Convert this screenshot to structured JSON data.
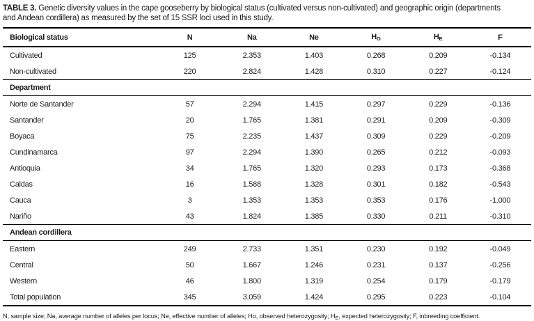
{
  "title": {
    "label": "TABLE 3.",
    "line1_rest": " Genetic diversity values in the cape gooseberry by biological status (cultivated versus non-cultivated) and geographic origin (departments",
    "line2": "and Andean cordillera) as measured by the set of 15 SSR loci used in this study."
  },
  "table": {
    "columns": [
      {
        "label": "Biological status",
        "sub": ""
      },
      {
        "label": "N",
        "sub": ""
      },
      {
        "label": "Na",
        "sub": ""
      },
      {
        "label": "Ne",
        "sub": ""
      },
      {
        "label": "H",
        "sub": "O"
      },
      {
        "label": "H",
        "sub": "E"
      },
      {
        "label": "F",
        "sub": ""
      }
    ],
    "sections": [
      {
        "title": "",
        "rows": [
          {
            "label": "Cultivated",
            "values": [
              "125",
              "2.353",
              "1.403",
              "0.268",
              "0.209",
              "-0.134"
            ]
          },
          {
            "label": "Non-cultivated",
            "values": [
              "220",
              "2.824",
              "1.428",
              "0.310",
              "0.227",
              "-0.124"
            ]
          }
        ]
      },
      {
        "title": "Department",
        "rows": [
          {
            "label": "Norte de Santander",
            "values": [
              "57",
              "2.294",
              "1.415",
              "0.297",
              "0.229",
              "-0.136"
            ]
          },
          {
            "label": "Santander",
            "values": [
              "20",
              "1.765",
              "1.381",
              "0.291",
              "0.209",
              "-0.309"
            ]
          },
          {
            "label": "Boyaca",
            "values": [
              "75",
              "2.235",
              "1.437",
              "0.309",
              "0.229",
              "-0.209"
            ]
          },
          {
            "label": "Cundinamarca",
            "values": [
              "97",
              "2.294",
              "1.390",
              "0.265",
              "0.212",
              "-0.093"
            ]
          },
          {
            "label": "Antioquia",
            "values": [
              "34",
              "1.765",
              "1.320",
              "0.293",
              "0.173",
              "-0.368"
            ]
          },
          {
            "label": "Caldas",
            "values": [
              "16",
              "1.588",
              "1.328",
              "0.301",
              "0.182",
              "-0.543"
            ]
          },
          {
            "label": "Cauca",
            "values": [
              "3",
              "1.353",
              "1.353",
              "0.353",
              "0.176",
              "-1.000"
            ]
          },
          {
            "label": "Nariño",
            "values": [
              "43",
              "1.824",
              "1.385",
              "0.330",
              "0.211",
              "-0.310"
            ]
          }
        ]
      },
      {
        "title": "Andean cordillera",
        "rows": [
          {
            "label": "Eastern",
            "values": [
              "249",
              "2.733",
              "1.351",
              "0.230",
              "0.192",
              "-0.049"
            ]
          },
          {
            "label": "Central",
            "values": [
              "50",
              "1.667",
              "1.246",
              "0.231",
              "0.137",
              "-0.256"
            ]
          },
          {
            "label": "Western",
            "values": [
              "46",
              "1.800",
              "1.319",
              "0.254",
              "0.179",
              "-0.179"
            ]
          },
          {
            "label": "Total population",
            "values": [
              "345",
              "3.059",
              "1.424",
              "0.295",
              "0.223",
              "-0.104"
            ]
          }
        ]
      }
    ]
  },
  "footnote": {
    "part1": "N, sample size; Na, average number of alleles per locus; Ne, effective number of alleles; Ho, observed heterozygosity; H",
    "sub": "E",
    "part2": ", expected heterozygosity; F, inbreeding coefficient."
  }
}
